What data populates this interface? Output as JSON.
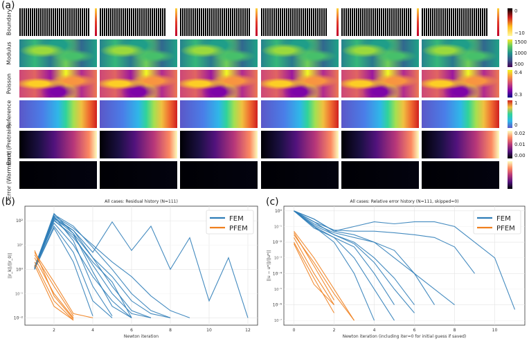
{
  "panel_labels": {
    "a": "(a)",
    "b": "(b)",
    "c": "(c)"
  },
  "field_rows": [
    {
      "label": "Boundary",
      "colorbar_ticks": [
        "0",
        "−10"
      ]
    },
    {
      "label": "Modulus",
      "colorbar_ticks": [
        "1500",
        "1000",
        "500"
      ]
    },
    {
      "label": "Poisson",
      "colorbar_ticks": [
        "0.4",
        "0.3"
      ]
    },
    {
      "label": "Reference",
      "colorbar_ticks": [
        "1",
        "0"
      ]
    },
    {
      "label": "Error (Pretrain)",
      "colorbar_ticks": [
        "0.02",
        "0.01",
        "0.00"
      ]
    },
    {
      "label": "Error (Warmstart)",
      "colorbar_ticks": []
    }
  ],
  "chart_data": [
    {
      "type": "line",
      "title": "All cases: Residual history (N=111)",
      "xlabel": "Newton iteration",
      "ylabel": "||r_k||/||r_0||",
      "yscale": "log",
      "xlim": [
        0.5,
        12.5
      ],
      "ylim": [
        0.005,
        400
      ],
      "x_ticks": [
        2,
        4,
        6,
        8,
        10,
        12
      ],
      "y_ticks": [
        {
          "value": 100,
          "label": "10²"
        },
        {
          "value": 1,
          "label": "10⁰"
        },
        {
          "value": 0.01,
          "label": "10⁻²"
        }
      ],
      "y_minor_ticks": [
        10,
        0.1
      ],
      "y_minor_labels": [
        "10¹",
        "10⁻¹"
      ],
      "legend": [
        "FEM",
        "PFEM"
      ],
      "legend_position": "top-right",
      "series_colors": {
        "FEM": "#2f7db8",
        "PFEM": "#f07f1d"
      },
      "series": [
        {
          "name": "FEM",
          "x": [
            1,
            2,
            3,
            4,
            5,
            6
          ],
          "y": [
            1.2,
            200,
            30,
            0.8,
            0.03,
            0.01
          ]
        },
        {
          "name": "FEM",
          "x": [
            1,
            2,
            3,
            4,
            5
          ],
          "y": [
            1.0,
            150,
            15,
            0.2,
            0.012
          ]
        },
        {
          "name": "FEM",
          "x": [
            1,
            2,
            3,
            4,
            5,
            6,
            7
          ],
          "y": [
            1.1,
            120,
            40,
            3,
            0.2,
            0.02,
            0.01
          ]
        },
        {
          "name": "FEM",
          "x": [
            1,
            2,
            3,
            4,
            5,
            6
          ],
          "y": [
            1.2,
            80,
            10,
            0.5,
            0.05,
            0.01
          ]
        },
        {
          "name": "FEM",
          "x": [
            1,
            2,
            3,
            4
          ],
          "y": [
            1.0,
            50,
            2,
            0.012
          ]
        },
        {
          "name": "FEM",
          "x": [
            1,
            2,
            3,
            4,
            5,
            6,
            7,
            8
          ],
          "y": [
            1.3,
            180,
            60,
            8,
            1,
            0.1,
            0.02,
            0.01
          ]
        },
        {
          "name": "FEM",
          "x": [
            1,
            2,
            3,
            4,
            5,
            6,
            7,
            8,
            9
          ],
          "y": [
            1.2,
            160,
            50,
            10,
            2,
            0.5,
            0.08,
            0.02,
            0.01
          ]
        },
        {
          "name": "FEM",
          "x": [
            1,
            2,
            3,
            4,
            5,
            6,
            7,
            8,
            9,
            10,
            11,
            12
          ],
          "y": [
            1.1,
            140,
            40,
            5,
            90,
            6,
            60,
            1,
            20,
            0.05,
            3,
            0.01
          ]
        },
        {
          "name": "FEM",
          "x": [
            1,
            2,
            3,
            4,
            5,
            6,
            7
          ],
          "y": [
            1.0,
            100,
            25,
            1.5,
            0.1,
            0.015,
            0.01
          ]
        },
        {
          "name": "FEM",
          "x": [
            1,
            2,
            3,
            4,
            5
          ],
          "y": [
            1.1,
            60,
            5,
            0.05,
            0.01
          ]
        },
        {
          "name": "FEM",
          "x": [
            1,
            2,
            3,
            4,
            5,
            6
          ],
          "y": [
            1.2,
            110,
            20,
            2,
            0.3,
            0.01
          ]
        },
        {
          "name": "FEM",
          "x": [
            1,
            2,
            3,
            4,
            5,
            6,
            7,
            8
          ],
          "y": [
            1.0,
            130,
            30,
            3,
            0.5,
            0.05,
            0.015,
            0.01
          ]
        },
        {
          "name": "PFEM",
          "x": [
            1,
            2,
            3,
            4
          ],
          "y": [
            5,
            0.3,
            0.015,
            0.01
          ]
        },
        {
          "name": "PFEM",
          "x": [
            1,
            2,
            3
          ],
          "y": [
            3,
            0.1,
            0.01
          ]
        },
        {
          "name": "PFEM",
          "x": [
            1,
            2,
            3
          ],
          "y": [
            2,
            0.05,
            0.008
          ]
        },
        {
          "name": "PFEM",
          "x": [
            1,
            2,
            3
          ],
          "y": [
            4,
            0.2,
            0.012
          ]
        },
        {
          "name": "PFEM",
          "x": [
            1,
            2,
            3
          ],
          "y": [
            6,
            0.08,
            0.009
          ]
        },
        {
          "name": "PFEM",
          "x": [
            1,
            2,
            3
          ],
          "y": [
            1.5,
            0.03,
            0.008
          ]
        }
      ]
    },
    {
      "type": "line",
      "title": "All cases: Relative error history (N=111, skipped=0)",
      "xlabel": "Newton iteration (including iter=0 for initial guess if saved)",
      "ylabel": "||u − u*||/||u*||",
      "yscale": "log",
      "xlim": [
        -0.5,
        11.5
      ],
      "ylim": [
        5e-08,
        2
      ],
      "x_ticks": [
        0,
        2,
        4,
        6,
        8,
        10
      ],
      "y_ticks": [
        {
          "value": 1,
          "label": "10⁰"
        },
        {
          "value": 0.01,
          "label": "10⁻²"
        },
        {
          "value": 0.0001,
          "label": "10⁻⁴"
        },
        {
          "value": 1e-06,
          "label": "10⁻⁶"
        }
      ],
      "y_minor_ticks": [
        0.1,
        0.001,
        1e-05,
        1e-07
      ],
      "y_minor_labels": [
        "10⁻¹",
        "10⁻³",
        "10⁻⁵",
        "10⁻⁷"
      ],
      "legend": [
        "FEM",
        "PFEM"
      ],
      "legend_position": "top-right",
      "series_colors": {
        "FEM": "#2f7db8",
        "PFEM": "#f07f1d"
      },
      "series": [
        {
          "name": "FEM",
          "x": [
            0,
            1,
            2,
            3,
            4,
            5,
            6,
            7,
            8,
            9,
            10,
            11
          ],
          "y": [
            1,
            0.3,
            0.05,
            0.1,
            0.2,
            0.15,
            0.2,
            0.2,
            0.1,
            0.01,
            0.001,
            5e-07
          ]
        },
        {
          "name": "FEM",
          "x": [
            0,
            1,
            2,
            3,
            4,
            5,
            6
          ],
          "y": [
            1,
            0.2,
            0.03,
            0.01,
            0.001,
            5e-05,
            1e-06
          ]
        },
        {
          "name": "FEM",
          "x": [
            0,
            1,
            2,
            3,
            4,
            5
          ],
          "y": [
            1,
            0.1,
            0.02,
            0.005,
            0.0001,
            1e-06
          ]
        },
        {
          "name": "FEM",
          "x": [
            0,
            1,
            2,
            3,
            4
          ],
          "y": [
            1,
            0.1,
            0.01,
            0.0001,
            1e-07
          ]
        },
        {
          "name": "FEM",
          "x": [
            0,
            1,
            2,
            3,
            4,
            5,
            6,
            7,
            8
          ],
          "y": [
            1,
            0.15,
            0.04,
            0.02,
            0.01,
            0.003,
            0.0001,
            1e-05,
            1e-06
          ]
        },
        {
          "name": "FEM",
          "x": [
            0,
            1,
            2,
            3,
            4,
            5,
            6,
            7
          ],
          "y": [
            1,
            0.3,
            0.05,
            0.03,
            0.01,
            0.001,
            0.0001,
            1e-06
          ]
        },
        {
          "name": "FEM",
          "x": [
            0,
            1,
            2,
            3,
            4,
            5
          ],
          "y": [
            1,
            0.08,
            0.02,
            0.001,
            1e-05,
            1e-07
          ]
        },
        {
          "name": "FEM",
          "x": [
            0,
            1,
            2,
            3,
            4,
            5,
            6,
            7,
            8,
            9
          ],
          "y": [
            1,
            0.2,
            0.06,
            0.05,
            0.05,
            0.04,
            0.03,
            0.02,
            0.005,
            0.0001
          ]
        },
        {
          "name": "FEM",
          "x": [
            0,
            1,
            2,
            3,
            4,
            5,
            6
          ],
          "y": [
            1,
            0.12,
            0.03,
            0.008,
            0.0005,
            1e-05,
            3e-07
          ]
        },
        {
          "name": "PFEM",
          "x": [
            0,
            1,
            2,
            3
          ],
          "y": [
            0.05,
            0.001,
            1e-05,
            1e-07
          ]
        },
        {
          "name": "PFEM",
          "x": [
            0,
            1,
            2
          ],
          "y": [
            0.02,
            0.0001,
            1e-06
          ]
        },
        {
          "name": "PFEM",
          "x": [
            0,
            1,
            2
          ],
          "y": [
            0.01,
            5e-05,
            3e-07
          ]
        },
        {
          "name": "PFEM",
          "x": [
            0,
            1,
            2,
            3
          ],
          "y": [
            0.03,
            0.0005,
            5e-06,
            1e-07
          ]
        },
        {
          "name": "PFEM",
          "x": [
            0,
            1,
            2
          ],
          "y": [
            0.008,
            2e-05,
            1e-06
          ]
        },
        {
          "name": "PFEM",
          "x": [
            0,
            1,
            2
          ],
          "y": [
            0.04,
            0.0003,
            2e-06
          ]
        }
      ]
    }
  ]
}
